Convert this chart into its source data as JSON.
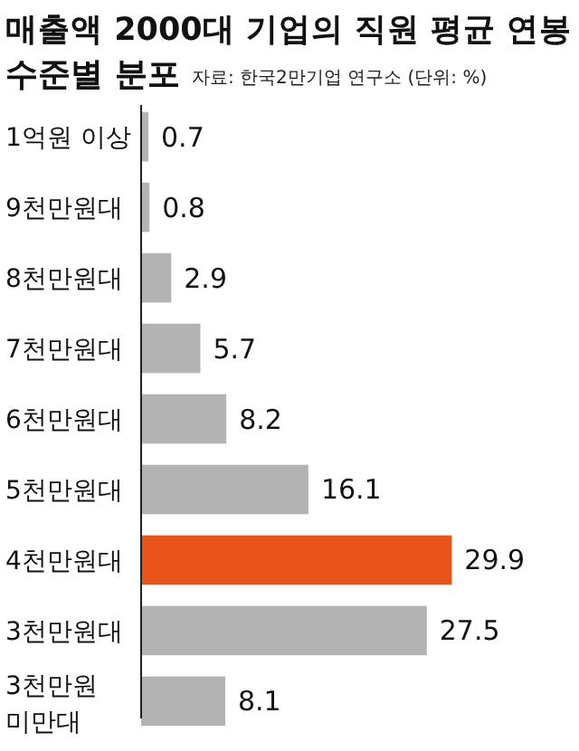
{
  "chart_data": {
    "type": "bar",
    "orientation": "horizontal",
    "title": "매출액 2000대 기업의 직원 평균 연봉 수준별 분포",
    "annotations": [
      "자료: 한국2만기업 연구소 (단위: %)"
    ],
    "categories": [
      "1억원 이상",
      "9천만원대",
      "8천만원대",
      "7천만원대",
      "6천만원대",
      "5천만원대",
      "4천만원대",
      "3천만원대",
      "3천만원 미만대"
    ],
    "values": [
      0.7,
      0.8,
      2.9,
      5.7,
      8.2,
      16.1,
      29.9,
      27.5,
      8.1
    ],
    "colors": [
      "#b3b3b3",
      "#b3b3b3",
      "#b3b3b3",
      "#b3b3b3",
      "#b3b3b3",
      "#b3b3b3",
      "#e8541a",
      "#b3b3b3",
      "#b3b3b3"
    ],
    "data_labels": true
  }
}
